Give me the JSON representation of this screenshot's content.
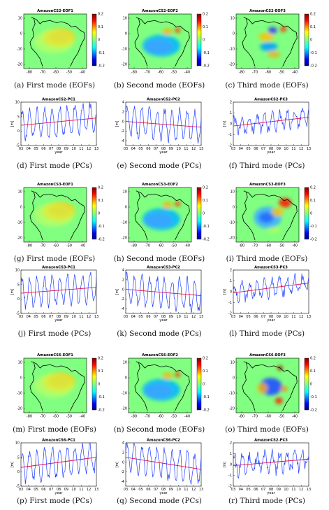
{
  "colorbar": {
    "ticks": [
      "0.2",
      "0.1",
      "0",
      "-0.1",
      "-0.2"
    ],
    "colors": [
      "#00008f",
      "#0000ff",
      "#00ffff",
      "#80ff80",
      "#ffff00",
      "#ff0000",
      "#800000"
    ]
  },
  "map_axes": {
    "x_ticks": [
      "-80",
      "-70",
      "-60",
      "-50",
      "-40"
    ],
    "y_ticks": [
      "10",
      "0",
      "-10",
      "-20"
    ]
  },
  "pc_axes": {
    "x_ticks": [
      "03",
      "04",
      "05",
      "06",
      "07",
      "08",
      "09",
      "10",
      "11",
      "12",
      "13"
    ],
    "xlabel": "year",
    "ylabel": "[m]"
  },
  "panels": [
    {
      "kind": "map",
      "title": "AmazonCS2-EOF1",
      "caption": "(a) First mode (EOFs)",
      "mode": 1
    },
    {
      "kind": "map",
      "title": "AmazonCS2-EOF2",
      "caption": "(b) Second mode (EOFs)",
      "mode": 2
    },
    {
      "kind": "map",
      "title": "AmazonCS2-EOF3",
      "caption": "(c) Third mode (EOFs)",
      "mode": 3
    },
    {
      "kind": "pc",
      "title": "AmazonCS2-PC1",
      "caption": "(d) First mode (PCs)",
      "y_ticks": [
        "10",
        "5",
        "0",
        "-5"
      ],
      "ylim": [
        -5,
        10
      ],
      "amp": 5,
      "trend": [
        2,
        4.5
      ],
      "noise": 0.3
    },
    {
      "kind": "pc",
      "title": "AmazonCS2-PC2",
      "caption": "(e) Second mode (PCs)",
      "y_ticks": [
        "4",
        "2",
        "0",
        "-2",
        "-4"
      ],
      "ylim": [
        -5,
        4
      ],
      "amp": 3,
      "trend": [
        0,
        -1.2
      ],
      "noise": 0.3
    },
    {
      "kind": "pc",
      "title": "AmazonCS2-PC3",
      "caption": "(f) Third mode (PCs)",
      "y_ticks": [
        "2",
        "1",
        "0",
        "-1",
        "-2"
      ],
      "ylim": [
        -2,
        2
      ],
      "amp": 0.7,
      "trend": [
        -0.2,
        0.6
      ],
      "noise": 0.6
    },
    {
      "kind": "map",
      "title": "AmazonCS3-EOF1",
      "caption": "(g) First mode (EOFs)",
      "mode": 1
    },
    {
      "kind": "map",
      "title": "AmazonCS3-EOF2",
      "caption": "(h) Second mode (EOFs)",
      "mode": 2
    },
    {
      "kind": "map",
      "title": "AmazonCS3-EOF3",
      "caption": "(i) Third mode (EOFs)",
      "mode": 4
    },
    {
      "kind": "pc",
      "title": "AmazonCS3-PC1",
      "caption": "(j) First mode (PCs)",
      "y_ticks": [
        "10",
        "5",
        "0",
        "-5"
      ],
      "ylim": [
        -5,
        10
      ],
      "amp": 5,
      "trend": [
        2,
        4
      ],
      "noise": 0.3
    },
    {
      "kind": "pc",
      "title": "AmazonCS3-PC2",
      "caption": "(k) Second mode (PCs)",
      "y_ticks": [
        "4",
        "2",
        "0",
        "-2",
        "-4"
      ],
      "ylim": [
        -5,
        4
      ],
      "amp": 3,
      "trend": [
        0,
        -1.3
      ],
      "noise": 0.3
    },
    {
      "kind": "pc",
      "title": "AmazonCS3-PC3",
      "caption": "(l) Third mode (PCs)",
      "y_ticks": [
        "2",
        "1",
        "0",
        "-1",
        "-2"
      ],
      "ylim": [
        -2,
        2
      ],
      "amp": 0.7,
      "trend": [
        -0.1,
        0.8
      ],
      "noise": 0.6
    },
    {
      "kind": "map",
      "title": "AmazonCS6-EOF1",
      "caption": "(m) First mode (EOFs)",
      "mode": 1
    },
    {
      "kind": "map",
      "title": "AmazonCS6-EOF2",
      "caption": "(n) Second mode (EOFs)",
      "mode": 2
    },
    {
      "kind": "map",
      "title": "AmazonCS6-EOF3",
      "caption": "(o) Third mode (EOFs)",
      "mode": 5
    },
    {
      "kind": "pc",
      "title": "AmazonCS6-PC1",
      "caption": "(p) First mode (PCs)",
      "y_ticks": [
        "10",
        "5",
        "0",
        "-5"
      ],
      "ylim": [
        -5,
        10
      ],
      "amp": 5,
      "trend": [
        1.5,
        5
      ],
      "noise": 0.3
    },
    {
      "kind": "pc",
      "title": "AmazonCS6-PC2",
      "caption": "(q) Second mode (PCs)",
      "y_ticks": [
        "4",
        "2",
        "0",
        "-2",
        "-4"
      ],
      "ylim": [
        -5,
        4
      ],
      "amp": 3,
      "trend": [
        1,
        -1.5
      ],
      "noise": 0.3
    },
    {
      "kind": "pc",
      "title": "AmazonCS2-PC3",
      "caption": "(r) Third mode (PCs)",
      "y_ticks": [
        "2",
        "1",
        "0",
        "-1",
        "-2"
      ],
      "ylim": [
        -2,
        2
      ],
      "amp": 0.8,
      "trend": [
        -0.1,
        0.5
      ],
      "noise": 0.7
    }
  ]
}
